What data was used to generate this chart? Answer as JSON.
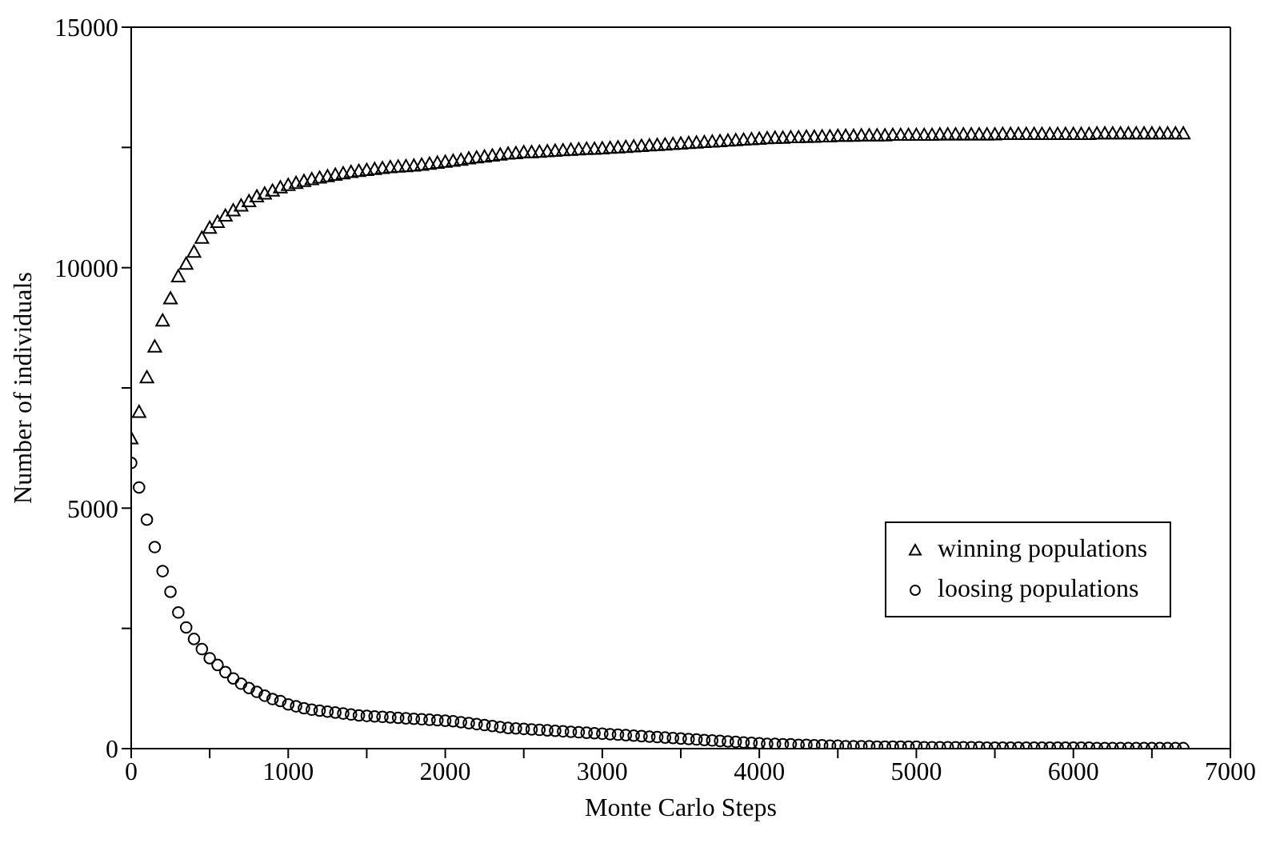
{
  "chart_data": {
    "type": "scatter",
    "xlabel": "Monte Carlo Steps",
    "ylabel": "Number of individuals",
    "xlim": [
      0,
      7000
    ],
    "ylim": [
      0,
      15000
    ],
    "xticks": [
      0,
      {
        "value": 500,
        "label": null
      },
      1000,
      {
        "value": 1500,
        "label": null
      },
      2000,
      {
        "value": 2500,
        "label": null
      },
      3000,
      {
        "value": 3500,
        "label": null
      },
      4000,
      {
        "value": 4500,
        "label": null
      },
      5000,
      {
        "value": 5500,
        "label": null
      },
      6000,
      {
        "value": 6500,
        "label": null
      },
      7000
    ],
    "yticks": [
      0,
      {
        "value": 2500,
        "label": null
      },
      5000,
      {
        "value": 7500,
        "label": null
      },
      10000,
      {
        "value": 12500,
        "label": null
      },
      15000
    ],
    "legend": "right",
    "x": [
      0,
      50,
      100,
      150,
      200,
      250,
      300,
      350,
      400,
      450,
      500,
      550,
      600,
      650,
      700,
      750,
      800,
      850,
      900,
      950,
      1000,
      1050,
      1100,
      1150,
      1200,
      1250,
      1300,
      1350,
      1400,
      1450,
      1500,
      1550,
      1600,
      1650,
      1700,
      1750,
      1800,
      1850,
      1900,
      1950,
      2000,
      2050,
      2100,
      2150,
      2200,
      2250,
      2300,
      2350,
      2400,
      2450,
      2500,
      2550,
      2600,
      2650,
      2700,
      2750,
      2800,
      2850,
      2900,
      2950,
      3000,
      3050,
      3100,
      3150,
      3200,
      3250,
      3300,
      3350,
      3400,
      3450,
      3500,
      3550,
      3600,
      3650,
      3700,
      3750,
      3800,
      3850,
      3900,
      3950,
      4000,
      4050,
      4100,
      4150,
      4200,
      4250,
      4300,
      4350,
      4400,
      4450,
      4500,
      4550,
      4600,
      4650,
      4700,
      4750,
      4800,
      4850,
      4900,
      4950,
      5000,
      5050,
      5100,
      5150,
      5200,
      5250,
      5300,
      5350,
      5400,
      5450,
      5500,
      5550,
      5600,
      5650,
      5700,
      5750,
      5800,
      5850,
      5900,
      5950,
      6000,
      6050,
      6100,
      6150,
      6200,
      6250,
      6300,
      6350,
      6400,
      6450,
      6500,
      6550,
      6600,
      6650,
      6700
    ],
    "series": [
      {
        "name": "winning populations",
        "color": "#000000",
        "marker": "triangle",
        "values": [
          6450,
          7000,
          7720,
          8360,
          8900,
          9360,
          9820,
          10080,
          10330,
          10620,
          10830,
          10950,
          11080,
          11190,
          11290,
          11380,
          11480,
          11540,
          11600,
          11670,
          11720,
          11760,
          11800,
          11840,
          11870,
          11900,
          11930,
          11960,
          11990,
          12010,
          12030,
          12050,
          12070,
          12090,
          12100,
          12110,
          12120,
          12140,
          12160,
          12180,
          12200,
          12220,
          12240,
          12270,
          12290,
          12310,
          12330,
          12350,
          12370,
          12380,
          12400,
          12400,
          12410,
          12420,
          12430,
          12440,
          12450,
          12460,
          12470,
          12470,
          12480,
          12490,
          12500,
          12510,
          12520,
          12530,
          12540,
          12550,
          12560,
          12570,
          12580,
          12590,
          12600,
          12610,
          12620,
          12630,
          12640,
          12650,
          12660,
          12670,
          12680,
          12690,
          12700,
          12700,
          12710,
          12710,
          12720,
          12720,
          12730,
          12730,
          12740,
          12740,
          12740,
          12750,
          12750,
          12750,
          12750,
          12760,
          12760,
          12760,
          12760,
          12760,
          12760,
          12770,
          12770,
          12770,
          12770,
          12770,
          12770,
          12770,
          12770,
          12780,
          12780,
          12780,
          12780,
          12780,
          12780,
          12780,
          12780,
          12780,
          12780,
          12780,
          12780,
          12790,
          12790,
          12790,
          12790,
          12790,
          12790,
          12790,
          12790,
          12790,
          12790,
          12790,
          12790
        ]
      },
      {
        "name": "loosing populations",
        "color": "#000000",
        "marker": "circle",
        "values": [
          5940,
          5430,
          4760,
          4190,
          3690,
          3260,
          2830,
          2520,
          2280,
          2070,
          1880,
          1740,
          1590,
          1460,
          1350,
          1260,
          1180,
          1100,
          1030,
          990,
          920,
          880,
          840,
          810,
          790,
          770,
          750,
          730,
          710,
          690,
          680,
          670,
          660,
          650,
          640,
          630,
          620,
          610,
          600,
          590,
          580,
          570,
          550,
          530,
          510,
          490,
          470,
          450,
          430,
          420,
          410,
          400,
          390,
          380,
          370,
          360,
          350,
          340,
          330,
          320,
          310,
          300,
          290,
          280,
          270,
          260,
          250,
          240,
          230,
          220,
          210,
          200,
          190,
          180,
          170,
          160,
          150,
          140,
          130,
          120,
          110,
          100,
          100,
          90,
          90,
          80,
          80,
          70,
          70,
          60,
          60,
          50,
          50,
          50,
          50,
          40,
          40,
          40,
          40,
          40,
          40,
          30,
          30,
          30,
          30,
          30,
          30,
          30,
          30,
          20,
          20,
          20,
          20,
          20,
          20,
          20,
          20,
          20,
          20,
          20,
          20,
          20,
          20,
          10,
          10,
          10,
          10,
          10,
          10,
          10,
          10,
          10,
          10,
          10,
          10
        ]
      }
    ]
  }
}
